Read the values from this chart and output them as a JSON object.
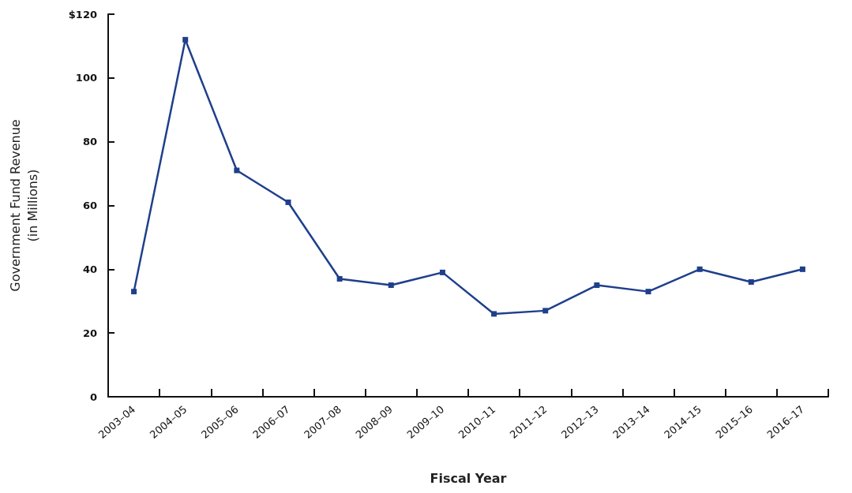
{
  "chart_data": {
    "type": "line",
    "xlabel": "Fiscal Year",
    "ylabel": "Government Fund Revenue\n(in Millions)",
    "categories": [
      "2003–04",
      "2004–05",
      "2005–06",
      "2006–07",
      "2007–08",
      "2008–09",
      "2009–10",
      "2010–11",
      "2011–12",
      "2012–13",
      "2013–14",
      "2014–15",
      "2015–16",
      "2016–17"
    ],
    "series": [
      {
        "color": "#1f3f8c",
        "values": [
          33,
          112,
          71,
          61,
          37,
          35,
          39,
          26,
          27,
          35,
          33,
          40,
          36,
          40
        ]
      }
    ],
    "ylim": [
      0,
      120
    ],
    "yticks": [
      0,
      20,
      40,
      60,
      80,
      100,
      {
        "value": 120,
        "label": "$120"
      }
    ],
    "grid": false,
    "marker": "square",
    "line_style": "solid"
  }
}
